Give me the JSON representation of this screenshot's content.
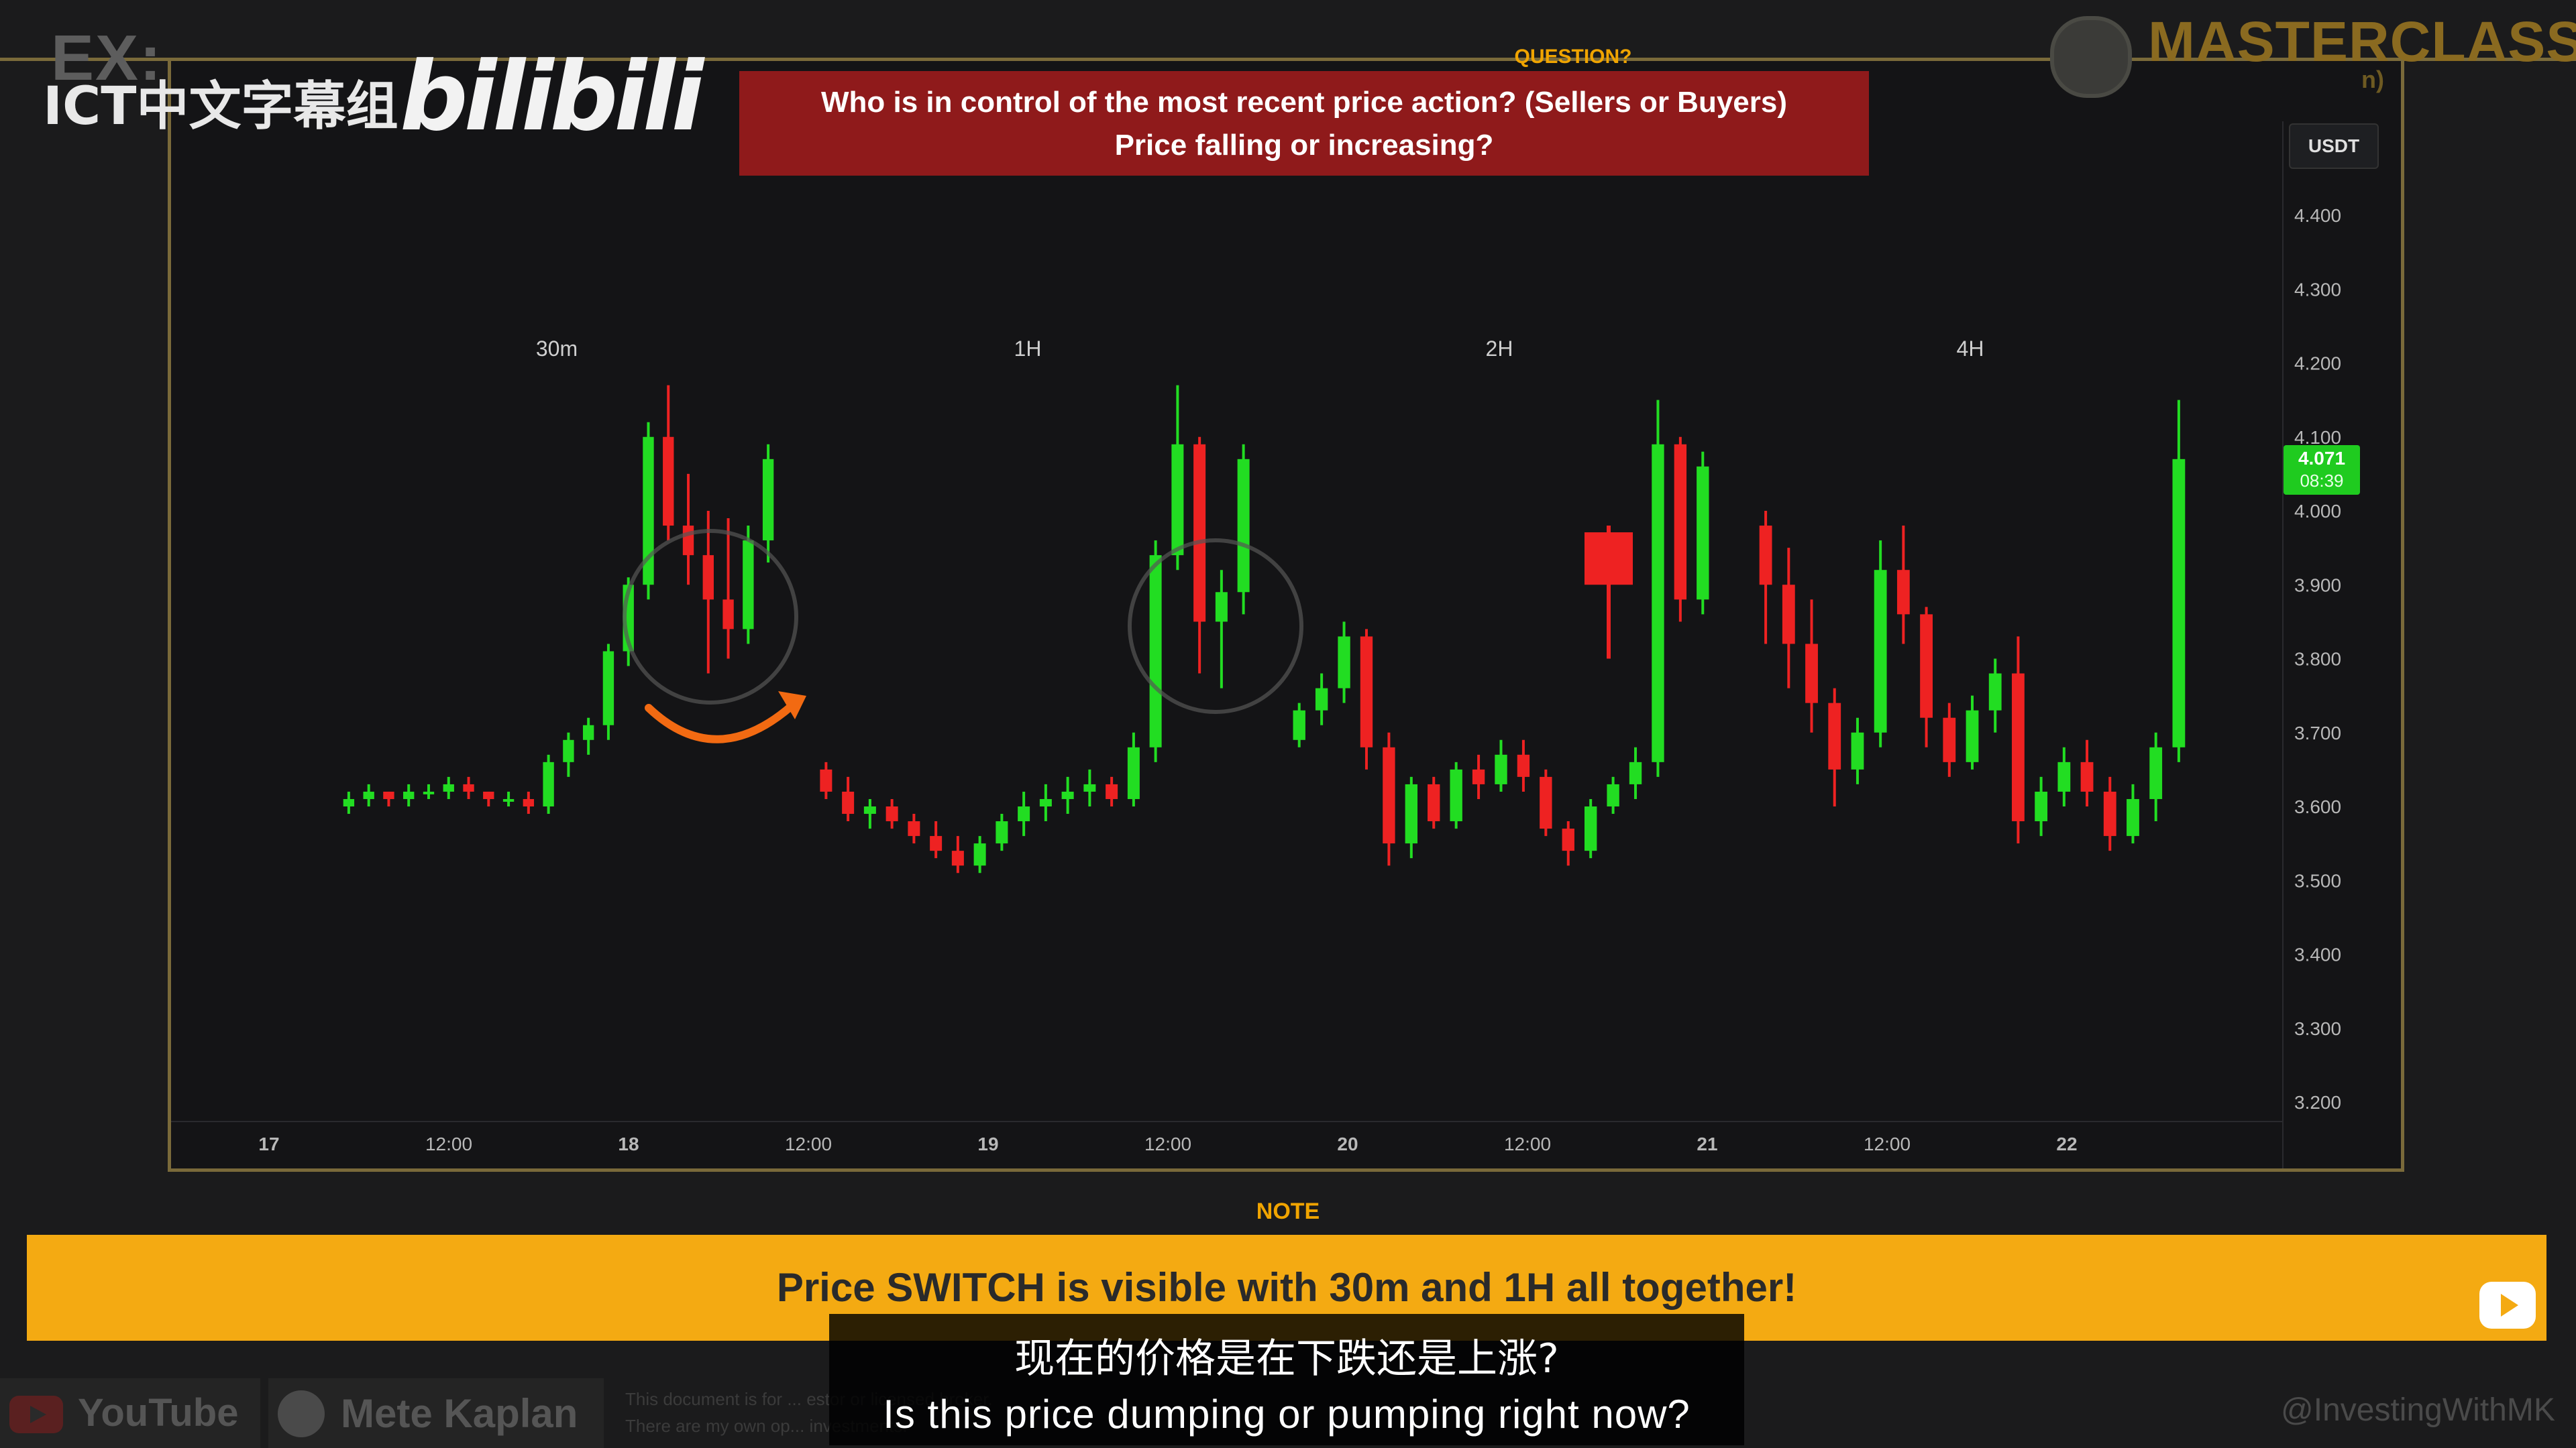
{
  "watermark": {
    "ex": "EX:",
    "group": "ICT中文字幕组",
    "platform": "bilibili"
  },
  "brand": {
    "title": "MASTERCLASS",
    "subtitle": "n)"
  },
  "question": {
    "label": "QUESTION?",
    "line1": "Who is in control of the most recent price action? (Sellers or Buyers)",
    "line2": "Price falling or increasing?"
  },
  "note": {
    "label": "NOTE",
    "text": "Price SWITCH is visible with 30m and 1H all together!"
  },
  "subtitles": {
    "cn": "现在的价格是在下跌还是上涨?",
    "en": "Is this price dumping or pumping right now?"
  },
  "footer": {
    "youtube": "YouTube",
    "author": "Mete Kaplan",
    "disclaimer_1": "This document is for ...                                                                              estor or licensed broker.",
    "disclaimer_2": "There are my own op...                                                                              investments.",
    "handle": "@InvestingWithMK"
  },
  "colors": {
    "up": "#22dd22",
    "down": "#ee2222",
    "question_bg": "#8f1a1b",
    "note_bg": "#f4aa12",
    "accent": "#f0a400"
  },
  "chart_data": {
    "type": "candlestick",
    "currency": "USDT",
    "last_price": "4.071",
    "countdown": "08:39",
    "ylim": [
      3.2,
      4.4
    ],
    "y_ticks": [
      "4.400",
      "4.300",
      "4.200",
      "4.100",
      "4.000",
      "3.900",
      "3.800",
      "3.700",
      "3.600",
      "3.500",
      "3.400",
      "3.300",
      "3.200"
    ],
    "x_ticks": [
      "17",
      "12:00",
      "18",
      "12:00",
      "19",
      "12:00",
      "20",
      "12:00",
      "21",
      "12:00",
      "22"
    ],
    "panels": [
      {
        "label": "30m",
        "ohlc": [
          [
            3.6,
            3.62,
            3.59,
            3.61
          ],
          [
            3.61,
            3.63,
            3.6,
            3.62
          ],
          [
            3.62,
            3.62,
            3.6,
            3.61
          ],
          [
            3.61,
            3.63,
            3.6,
            3.62
          ],
          [
            3.62,
            3.63,
            3.61,
            3.62
          ],
          [
            3.62,
            3.64,
            3.61,
            3.63
          ],
          [
            3.63,
            3.64,
            3.61,
            3.62
          ],
          [
            3.62,
            3.62,
            3.6,
            3.61
          ],
          [
            3.61,
            3.62,
            3.6,
            3.61
          ],
          [
            3.61,
            3.62,
            3.59,
            3.6
          ],
          [
            3.6,
            3.67,
            3.59,
            3.66
          ],
          [
            3.66,
            3.7,
            3.64,
            3.69
          ],
          [
            3.69,
            3.72,
            3.67,
            3.71
          ],
          [
            3.71,
            3.82,
            3.69,
            3.81
          ],
          [
            3.81,
            3.91,
            3.79,
            3.9
          ],
          [
            3.9,
            4.12,
            3.88,
            4.1
          ],
          [
            4.1,
            4.17,
            3.96,
            3.98
          ],
          [
            3.98,
            4.05,
            3.9,
            3.94
          ],
          [
            3.94,
            4.0,
            3.78,
            3.88
          ],
          [
            3.88,
            3.99,
            3.8,
            3.84
          ],
          [
            3.84,
            3.98,
            3.82,
            3.96
          ],
          [
            3.96,
            4.09,
            3.93,
            4.07
          ]
        ]
      },
      {
        "label": "1H",
        "ohlc": [
          [
            3.65,
            3.66,
            3.61,
            3.62
          ],
          [
            3.62,
            3.64,
            3.58,
            3.59
          ],
          [
            3.59,
            3.61,
            3.57,
            3.6
          ],
          [
            3.6,
            3.61,
            3.57,
            3.58
          ],
          [
            3.58,
            3.59,
            3.55,
            3.56
          ],
          [
            3.56,
            3.58,
            3.53,
            3.54
          ],
          [
            3.54,
            3.56,
            3.51,
            3.52
          ],
          [
            3.52,
            3.56,
            3.51,
            3.55
          ],
          [
            3.55,
            3.59,
            3.54,
            3.58
          ],
          [
            3.58,
            3.62,
            3.56,
            3.6
          ],
          [
            3.6,
            3.63,
            3.58,
            3.61
          ],
          [
            3.61,
            3.64,
            3.59,
            3.62
          ],
          [
            3.62,
            3.65,
            3.6,
            3.63
          ],
          [
            3.63,
            3.64,
            3.6,
            3.61
          ],
          [
            3.61,
            3.7,
            3.6,
            3.68
          ],
          [
            3.68,
            3.96,
            3.66,
            3.94
          ],
          [
            3.94,
            4.17,
            3.92,
            4.09
          ],
          [
            4.09,
            4.1,
            3.78,
            3.85
          ],
          [
            3.85,
            3.92,
            3.76,
            3.89
          ],
          [
            3.89,
            4.09,
            3.86,
            4.07
          ]
        ]
      },
      {
        "label": "2H",
        "ohlc": [
          [
            3.69,
            3.74,
            3.68,
            3.73
          ],
          [
            3.73,
            3.78,
            3.71,
            3.76
          ],
          [
            3.76,
            3.85,
            3.74,
            3.83
          ],
          [
            3.83,
            3.84,
            3.65,
            3.68
          ],
          [
            3.68,
            3.7,
            3.52,
            3.55
          ],
          [
            3.55,
            3.64,
            3.53,
            3.63
          ],
          [
            3.63,
            3.64,
            3.57,
            3.58
          ],
          [
            3.58,
            3.66,
            3.57,
            3.65
          ],
          [
            3.65,
            3.67,
            3.61,
            3.63
          ],
          [
            3.63,
            3.69,
            3.62,
            3.67
          ],
          [
            3.67,
            3.69,
            3.62,
            3.64
          ],
          [
            3.64,
            3.65,
            3.56,
            3.57
          ],
          [
            3.57,
            3.58,
            3.52,
            3.54
          ],
          [
            3.54,
            3.61,
            3.53,
            3.6
          ],
          [
            3.6,
            3.64,
            3.59,
            3.63
          ],
          [
            3.63,
            3.68,
            3.61,
            3.66
          ],
          [
            3.66,
            4.15,
            3.64,
            4.09
          ],
          [
            4.09,
            4.1,
            3.85,
            3.88
          ],
          [
            3.88,
            4.08,
            3.86,
            4.06
          ]
        ],
        "highlight_candle": [
          3.97,
          3.98,
          3.8,
          3.9
        ]
      },
      {
        "label": "4H",
        "ohlc": [
          [
            3.98,
            4.0,
            3.82,
            3.9
          ],
          [
            3.9,
            3.95,
            3.76,
            3.82
          ],
          [
            3.82,
            3.88,
            3.7,
            3.74
          ],
          [
            3.74,
            3.76,
            3.6,
            3.65
          ],
          [
            3.65,
            3.72,
            3.63,
            3.7
          ],
          [
            3.7,
            3.96,
            3.68,
            3.92
          ],
          [
            3.92,
            3.98,
            3.82,
            3.86
          ],
          [
            3.86,
            3.87,
            3.68,
            3.72
          ],
          [
            3.72,
            3.74,
            3.64,
            3.66
          ],
          [
            3.66,
            3.75,
            3.65,
            3.73
          ],
          [
            3.73,
            3.8,
            3.7,
            3.78
          ],
          [
            3.78,
            3.83,
            3.55,
            3.58
          ],
          [
            3.58,
            3.64,
            3.56,
            3.62
          ],
          [
            3.62,
            3.68,
            3.6,
            3.66
          ],
          [
            3.66,
            3.69,
            3.6,
            3.62
          ],
          [
            3.62,
            3.64,
            3.54,
            3.56
          ],
          [
            3.56,
            3.63,
            3.55,
            3.61
          ],
          [
            3.61,
            3.7,
            3.58,
            3.68
          ],
          [
            3.68,
            4.15,
            3.66,
            4.07
          ]
        ]
      }
    ]
  }
}
